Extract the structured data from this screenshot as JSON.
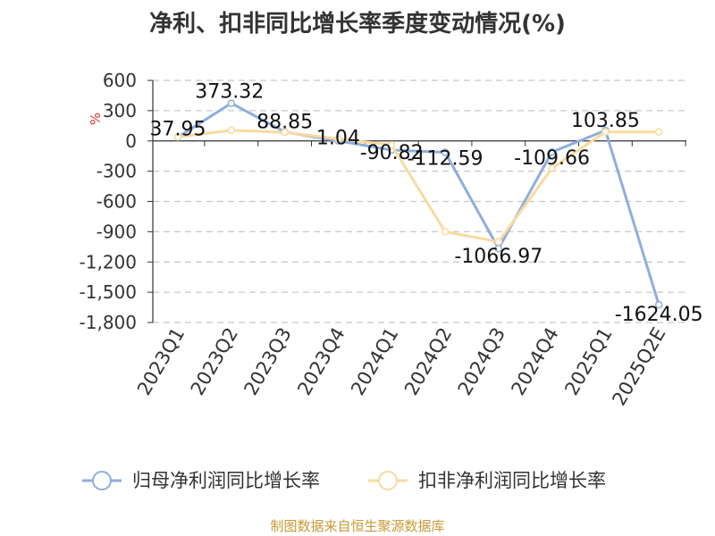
{
  "title": "净利、扣非同比增长率季度变动情况(%)",
  "source_note": "制图数据来自恒生聚源数据库",
  "colors": {
    "series_1": "#8eaedd",
    "series_2": "#fbd9a0",
    "grid": "#c8c8c8",
    "axis": "#333333",
    "unit_label": "#d9322f",
    "source_note": "#c79a36"
  },
  "chart_data": {
    "type": "line",
    "title": "净利、扣非同比增长率季度变动情况(%)",
    "unit_label": "%",
    "categories": [
      "2023Q1",
      "2023Q2",
      "2023Q3",
      "2023Q4",
      "2024Q1",
      "2024Q2",
      "2024Q3",
      "2024Q4",
      "2025Q1",
      "2025Q2E"
    ],
    "ylim": [
      -1800,
      600
    ],
    "yticks": [
      600,
      300,
      0,
      -300,
      -600,
      -900,
      -1200,
      -1500,
      -1800
    ],
    "ytick_labels": [
      "600",
      "300",
      "0",
      "-300",
      "-600",
      "-900",
      "-1,200",
      "-1,500",
      "-1,800"
    ],
    "grid": true,
    "legend_position": "bottom",
    "series": [
      {
        "name": "归母净利润同比增长率",
        "values": [
          37.95,
          373.32,
          88.85,
          1.04,
          -90.82,
          -112.59,
          -1066.97,
          -109.66,
          103.85,
          -1624.05
        ],
        "labels": [
          "37.95",
          "373.32",
          "88.85",
          "1.04",
          "-90.82",
          "-112.59",
          "-1066.97",
          "-109.66",
          "103.85",
          "-1624.05"
        ]
      },
      {
        "name": "扣非净利润同比增长率",
        "values": [
          40,
          105,
          85,
          20,
          -40,
          -900,
          -1000,
          -270,
          90,
          90
        ]
      }
    ]
  }
}
